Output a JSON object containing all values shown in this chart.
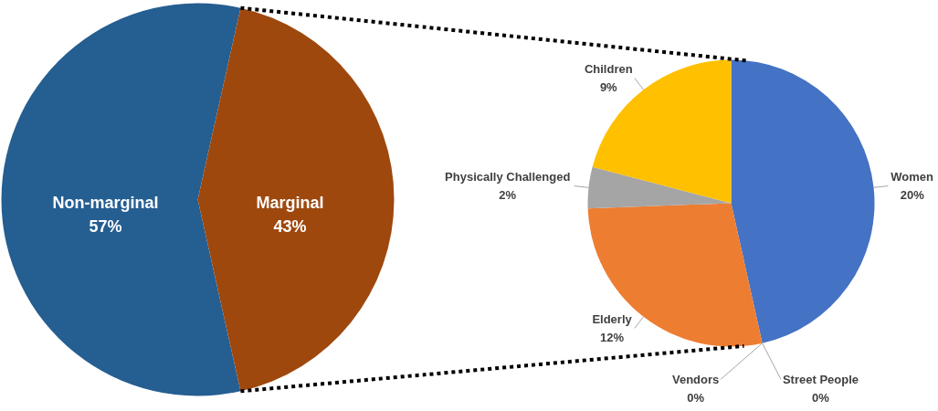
{
  "chart_data": [
    {
      "type": "pie",
      "categories": [
        "Non-marginal",
        "Marginal"
      ],
      "values": [
        57,
        43
      ],
      "colors": [
        "#255e91",
        "#9e480e"
      ],
      "value_labels": [
        "57%",
        "43%"
      ]
    },
    {
      "type": "pie",
      "categories": [
        "Women",
        "Street People",
        "Vendors",
        "Elderly",
        "Physically Challenged",
        "Children"
      ],
      "values": [
        20,
        0,
        0,
        12,
        2,
        9
      ],
      "colors": [
        "#4472c4",
        "#70ad47",
        "#5b9bd5",
        "#ed7d31",
        "#a5a5a5",
        "#ffc000"
      ],
      "value_labels": [
        "20%",
        "0%",
        "0%",
        "12%",
        "2%",
        "9%"
      ]
    }
  ]
}
